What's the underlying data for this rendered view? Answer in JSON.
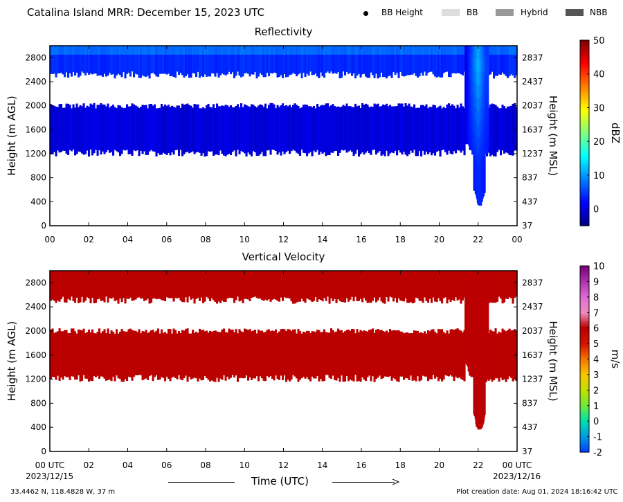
{
  "header": {
    "title": "Catalina Island MRR:  December 15, 2023 UTC",
    "legend": [
      {
        "label": "BB Height",
        "kind": "dot",
        "color": "#000000"
      },
      {
        "label": "BB",
        "kind": "box",
        "color": "#dddddd"
      },
      {
        "label": "Hybrid",
        "kind": "box",
        "color": "#999999"
      },
      {
        "label": "NBB",
        "kind": "box",
        "color": "#555555"
      }
    ]
  },
  "footer": {
    "location": "33.4462 N, 118.4828 W, 37 m",
    "creation": "Plot creation date: Aug 01, 2024 18:16:42 UTC",
    "xlabel": "Time (UTC)",
    "start_date": "2023/12/15",
    "end_date": "2023/12/16"
  },
  "chart_data": [
    {
      "type": "heatmap",
      "title": "Reflectivity",
      "ylabel": "Height (m AGL)",
      "ylabel_right": "Height (m MSL)",
      "xlim": [
        0,
        24
      ],
      "ylim": [
        0,
        3000
      ],
      "x_ticks": [
        "00",
        "02",
        "04",
        "06",
        "08",
        "10",
        "12",
        "14",
        "16",
        "18",
        "20",
        "22",
        "00"
      ],
      "y_ticks": [
        0,
        400,
        800,
        1200,
        1600,
        2000,
        2400,
        2800
      ],
      "y_ticks_right": [
        37,
        437,
        837,
        1237,
        1637,
        2037,
        2437,
        2837
      ],
      "colorbar": {
        "label": "dBZ",
        "ticks": [
          0,
          10,
          20,
          30,
          40,
          50
        ],
        "range": [
          -5,
          50
        ],
        "colormap": "jet"
      },
      "echo_layers": [
        {
          "x_range": [
            0,
            24
          ],
          "height_range": [
            2500,
            3000
          ],
          "dbz": 6
        },
        {
          "x_range": [
            0,
            24
          ],
          "height_range": [
            1200,
            2000
          ],
          "dbz": 0
        }
      ],
      "shower_column": {
        "x_range": [
          21.3,
          22.4
        ],
        "center": 22.0,
        "height_range": [
          300,
          3000
        ],
        "dbz_peak": 12
      }
    },
    {
      "type": "heatmap",
      "title": "Vertical Velocity",
      "ylabel": "Height (m AGL)",
      "ylabel_right": "Height (m MSL)",
      "xlim": [
        0,
        24
      ],
      "ylim": [
        0,
        3000
      ],
      "x_ticks": [
        "00 UTC",
        "02",
        "04",
        "06",
        "08",
        "10",
        "12",
        "14",
        "16",
        "18",
        "20",
        "22",
        "00 UTC"
      ],
      "y_ticks": [
        0,
        400,
        800,
        1200,
        1600,
        2000,
        2400,
        2800
      ],
      "y_ticks_right": [
        37,
        437,
        837,
        1237,
        1637,
        2037,
        2437,
        2837
      ],
      "colorbar": {
        "label": "m/s",
        "ticks": [
          -2,
          -1,
          0,
          1,
          2,
          3,
          4,
          5,
          6,
          7,
          8,
          9,
          10
        ],
        "range": [
          -2,
          10
        ]
      },
      "echo_layers": [
        {
          "x_range": [
            0,
            24
          ],
          "height_range": [
            2500,
            3000
          ],
          "velocity": 6
        },
        {
          "x_range": [
            0,
            24
          ],
          "height_range": [
            1200,
            2000
          ],
          "velocity": 6
        }
      ],
      "shower_column": {
        "x_range": [
          21.3,
          22.4
        ],
        "center": 22.0,
        "height_range": [
          300,
          3000
        ],
        "velocity": 6
      }
    }
  ]
}
